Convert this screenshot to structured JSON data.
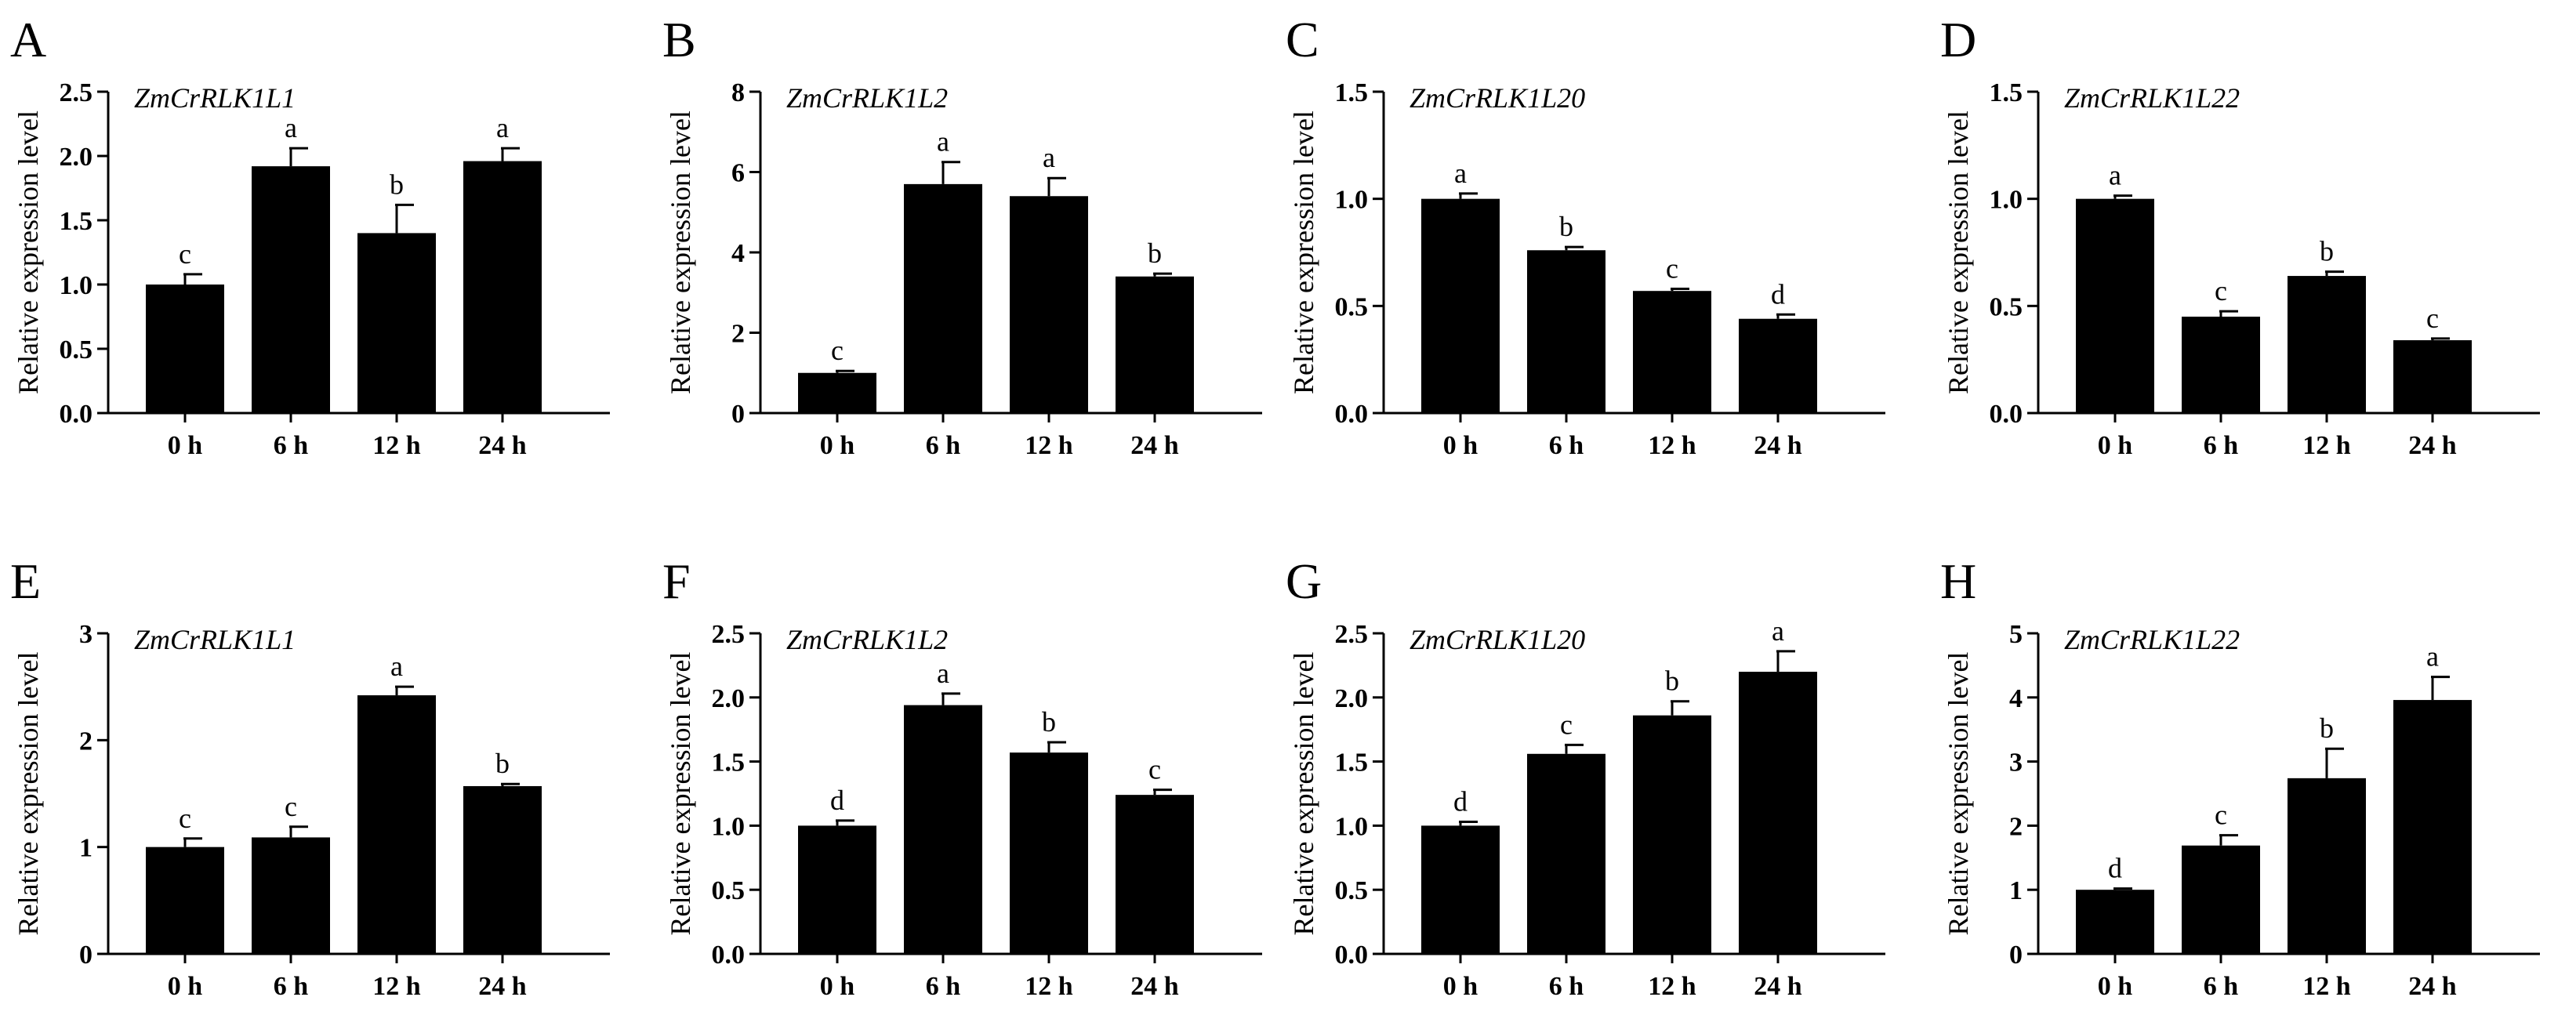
{
  "figure": {
    "background": "#ffffff",
    "bar_color": "#000000"
  },
  "chart_data": [
    {
      "type": "bar",
      "panel": "A",
      "title": "ZmCrRLK1L1",
      "ylabel": "Relative expression level",
      "categories": [
        "0 h",
        "6 h",
        "12 h",
        "24 h"
      ],
      "values": [
        1.0,
        1.92,
        1.4,
        1.96
      ],
      "errors": [
        0.08,
        0.14,
        0.22,
        0.1
      ],
      "letters": [
        "c",
        "a",
        "b",
        "a"
      ],
      "ylim": [
        0,
        2.5
      ],
      "yticks": [
        0,
        0.5,
        1.0,
        1.5,
        2.0,
        2.5
      ],
      "ytick_labels": [
        "0.0",
        "0.5",
        "1.0",
        "1.5",
        "2.0",
        "2.5"
      ]
    },
    {
      "type": "bar",
      "panel": "B",
      "title": "ZmCrRLK1L2",
      "ylabel": "Relative expression level",
      "categories": [
        "0 h",
        "6 h",
        "12 h",
        "24 h"
      ],
      "values": [
        1.0,
        5.7,
        5.4,
        3.4
      ],
      "errors": [
        0.05,
        0.55,
        0.45,
        0.07
      ],
      "letters": [
        "c",
        "a",
        "a",
        "b"
      ],
      "ylim": [
        0,
        8
      ],
      "yticks": [
        0,
        2,
        4,
        6,
        8
      ],
      "ytick_labels": [
        "0",
        "2",
        "4",
        "6",
        "8"
      ]
    },
    {
      "type": "bar",
      "panel": "C",
      "title": "ZmCrRLK1L20",
      "ylabel": "Relative expression level",
      "categories": [
        "0 h",
        "6 h",
        "12 h",
        "24 h"
      ],
      "values": [
        1.0,
        0.76,
        0.57,
        0.44
      ],
      "errors": [
        0.025,
        0.015,
        0.01,
        0.02
      ],
      "letters": [
        "a",
        "b",
        "c",
        "d"
      ],
      "ylim": [
        0,
        1.5
      ],
      "yticks": [
        0,
        0.5,
        1.0,
        1.5
      ],
      "ytick_labels": [
        "0.0",
        "0.5",
        "1.0",
        "1.5"
      ]
    },
    {
      "type": "bar",
      "panel": "D",
      "title": "ZmCrRLK1L22",
      "ylabel": "Relative expression level",
      "categories": [
        "0 h",
        "6 h",
        "12 h",
        "24 h"
      ],
      "values": [
        1.0,
        0.45,
        0.64,
        0.34
      ],
      "errors": [
        0.015,
        0.025,
        0.02,
        0.008
      ],
      "letters": [
        "a",
        "c",
        "b",
        "c"
      ],
      "ylim": [
        0,
        1.5
      ],
      "yticks": [
        0,
        0.5,
        1.0,
        1.5
      ],
      "ytick_labels": [
        "0.0",
        "0.5",
        "1.0",
        "1.5"
      ]
    },
    {
      "type": "bar",
      "panel": "E",
      "title": "ZmCrRLK1L1",
      "ylabel": "Relative expression level",
      "categories": [
        "0 h",
        "6 h",
        "12 h",
        "24 h"
      ],
      "values": [
        1.0,
        1.09,
        2.42,
        1.57
      ],
      "errors": [
        0.08,
        0.1,
        0.08,
        0.02
      ],
      "letters": [
        "c",
        "c",
        "a",
        "b"
      ],
      "ylim": [
        0,
        3
      ],
      "yticks": [
        0,
        1,
        2,
        3
      ],
      "ytick_labels": [
        "0",
        "1",
        "2",
        "3"
      ]
    },
    {
      "type": "bar",
      "panel": "F",
      "title": "ZmCrRLK1L2",
      "ylabel": "Relative expression level",
      "categories": [
        "0 h",
        "6 h",
        "12 h",
        "24 h"
      ],
      "values": [
        1.0,
        1.94,
        1.57,
        1.24
      ],
      "errors": [
        0.04,
        0.09,
        0.08,
        0.04
      ],
      "letters": [
        "d",
        "a",
        "b",
        "c"
      ],
      "ylim": [
        0,
        2.5
      ],
      "yticks": [
        0,
        0.5,
        1.0,
        1.5,
        2.0,
        2.5
      ],
      "ytick_labels": [
        "0.0",
        "0.5",
        "1.0",
        "1.5",
        "2.0",
        "2.5"
      ]
    },
    {
      "type": "bar",
      "panel": "G",
      "title": "ZmCrRLK1L20",
      "ylabel": "Relative expression level",
      "categories": [
        "0 h",
        "6 h",
        "12 h",
        "24 h"
      ],
      "values": [
        1.0,
        1.56,
        1.86,
        2.2
      ],
      "errors": [
        0.03,
        0.07,
        0.11,
        0.16
      ],
      "letters": [
        "d",
        "c",
        "b",
        "a"
      ],
      "ylim": [
        0,
        2.5
      ],
      "yticks": [
        0,
        0.5,
        1.0,
        1.5,
        2.0,
        2.5
      ],
      "ytick_labels": [
        "0.0",
        "0.5",
        "1.0",
        "1.5",
        "2.0",
        "2.5"
      ]
    },
    {
      "type": "bar",
      "panel": "H",
      "title": "ZmCrRLK1L22",
      "ylabel": "Relative expression level",
      "categories": [
        "0 h",
        "6 h",
        "12 h",
        "24 h"
      ],
      "values": [
        1.0,
        1.69,
        2.74,
        3.96
      ],
      "errors": [
        0.02,
        0.16,
        0.46,
        0.36
      ],
      "letters": [
        "d",
        "c",
        "b",
        "a"
      ],
      "ylim": [
        0,
        5
      ],
      "yticks": [
        0,
        1,
        2,
        3,
        4,
        5
      ],
      "ytick_labels": [
        "0",
        "1",
        "2",
        "3",
        "4",
        "5"
      ]
    }
  ]
}
